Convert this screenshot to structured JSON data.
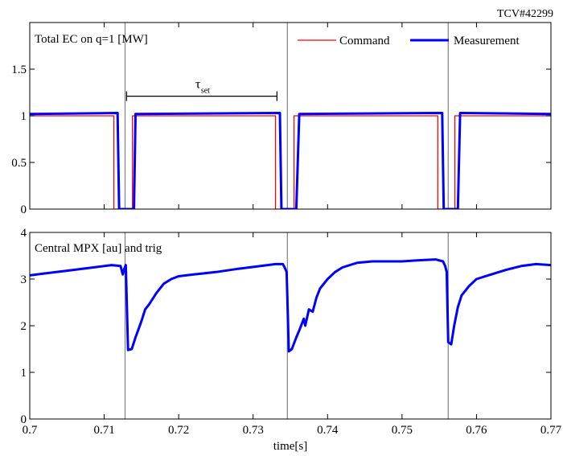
{
  "figure_label": "TCV#42299",
  "chart_data": [
    {
      "type": "line",
      "title": "Total EC on q=1 [MW]",
      "xlim": [
        0.7,
        0.77
      ],
      "ylim": [
        0,
        2
      ],
      "yticks": [
        0,
        0.5,
        1,
        1.5
      ],
      "ytick_labels": [
        "0",
        "0.5",
        "1",
        "1.5"
      ],
      "grid": false,
      "legend_position": "top-right",
      "annotation": {
        "text": "τ",
        "subscript": "set",
        "x_start": 0.713,
        "x_end": 0.7332,
        "y": 1.21
      },
      "trigger_lines_x": [
        0.7128,
        0.7346,
        0.7562
      ],
      "series": [
        {
          "name": "Command",
          "color": "#ff0000",
          "x": [
            0.7,
            0.7113,
            0.7113,
            0.7138,
            0.7138,
            0.733,
            0.733,
            0.7355,
            0.7355,
            0.7548,
            0.7548,
            0.7571,
            0.7571,
            0.77
          ],
          "y": [
            1.0,
            1.0,
            0,
            0,
            1.0,
            1.0,
            0,
            0,
            1.0,
            1.0,
            0,
            0,
            1.0,
            1.0
          ]
        },
        {
          "name": "Measurement",
          "color": "#0000ff",
          "x": [
            0.7,
            0.7118,
            0.712,
            0.714,
            0.7142,
            0.7336,
            0.7338,
            0.7358,
            0.7362,
            0.7554,
            0.7556,
            0.7575,
            0.7578,
            0.77
          ],
          "y": [
            1.02,
            1.03,
            0,
            0,
            1.02,
            1.03,
            0,
            0,
            1.02,
            1.03,
            0,
            0,
            1.03,
            1.02
          ]
        }
      ]
    },
    {
      "type": "line",
      "title": "Central MPX [au] and trig",
      "xlabel": "time[s]",
      "xlim": [
        0.7,
        0.77
      ],
      "xticks": [
        0.7,
        0.71,
        0.72,
        0.73,
        0.74,
        0.75,
        0.76,
        0.77
      ],
      "xtick_labels": [
        "0.7",
        "0.71",
        "0.72",
        "0.73",
        "0.74",
        "0.75",
        "0.76",
        "0.77"
      ],
      "ylim": [
        0,
        4
      ],
      "yticks": [
        0,
        1,
        2,
        3,
        4
      ],
      "ytick_labels": [
        "0",
        "1",
        "2",
        "3",
        "4"
      ],
      "grid": false,
      "trigger_lines_x": [
        0.7128,
        0.7346,
        0.7562
      ],
      "series": [
        {
          "color": "#0000ff",
          "x": [
            0.7,
            0.702,
            0.705,
            0.708,
            0.711,
            0.7122,
            0.7125,
            0.7127,
            0.7129,
            0.7132,
            0.7137,
            0.7142,
            0.715,
            0.7155,
            0.716,
            0.717,
            0.718,
            0.719,
            0.72,
            0.722,
            0.725,
            0.728,
            0.731,
            0.733,
            0.734,
            0.7342,
            0.7345,
            0.7348,
            0.7352,
            0.7358,
            0.7362,
            0.7368,
            0.737,
            0.7375,
            0.738,
            0.7385,
            0.739,
            0.74,
            0.741,
            0.742,
            0.744,
            0.746,
            0.748,
            0.75,
            0.752,
            0.7545,
            0.7555,
            0.7558,
            0.756,
            0.7562,
            0.7566,
            0.757,
            0.7575,
            0.758,
            0.759,
            0.76,
            0.762,
            0.764,
            0.766,
            0.768,
            0.77
          ],
          "y": [
            3.08,
            3.12,
            3.18,
            3.24,
            3.3,
            3.28,
            3.1,
            3.22,
            3.3,
            1.48,
            1.5,
            1.75,
            2.1,
            2.35,
            2.45,
            2.7,
            2.9,
            3.0,
            3.06,
            3.1,
            3.15,
            3.22,
            3.28,
            3.32,
            3.32,
            3.26,
            3.15,
            1.45,
            1.5,
            1.75,
            1.9,
            2.15,
            2.0,
            2.35,
            2.3,
            2.6,
            2.8,
            3.0,
            3.15,
            3.25,
            3.35,
            3.38,
            3.38,
            3.38,
            3.4,
            3.42,
            3.38,
            3.28,
            3.15,
            1.65,
            1.6,
            2.0,
            2.4,
            2.65,
            2.85,
            3.0,
            3.1,
            3.2,
            3.28,
            3.32,
            3.3
          ]
        }
      ]
    }
  ]
}
